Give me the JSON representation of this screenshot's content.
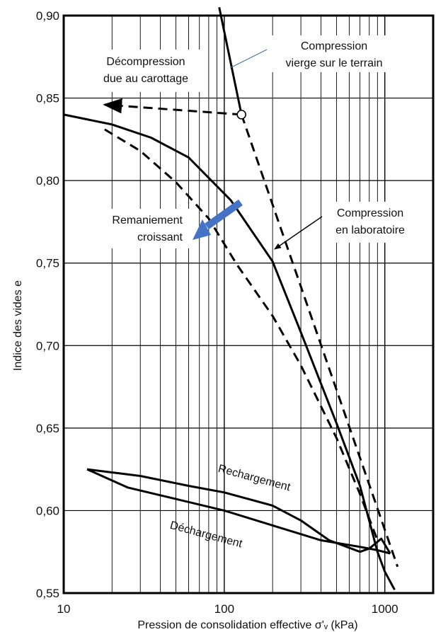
{
  "chart_data": {
    "type": "line",
    "xscale": "log",
    "xlim": [
      10,
      2000
    ],
    "ylim": [
      0.55,
      0.9
    ],
    "grid": true,
    "xlabel": "Pression de consolidation effective σ'ᵥ (kPa)",
    "ylabel": "Indice des vides e",
    "x_ticks": [
      {
        "value": 10,
        "label": "10"
      },
      {
        "value": 100,
        "label": "100"
      },
      {
        "value": 1000,
        "label": "1000"
      }
    ],
    "y_ticks": [
      {
        "value": 0.9,
        "label": "0,90"
      },
      {
        "value": 0.85,
        "label": "0,85"
      },
      {
        "value": 0.8,
        "label": "0,80"
      },
      {
        "value": 0.75,
        "label": "0,75"
      },
      {
        "value": 0.7,
        "label": "0,70"
      },
      {
        "value": 0.65,
        "label": "0,65"
      },
      {
        "value": 0.6,
        "label": "0,60"
      },
      {
        "value": 0.55,
        "label": "0,55"
      }
    ],
    "series": [
      {
        "key": "field_virgin",
        "style": "solid",
        "color": "#000000",
        "points": [
          [
            93,
            0.905
          ],
          [
            128,
            0.84
          ]
        ]
      },
      {
        "key": "field_extension",
        "style": "dashed",
        "color": "#000000",
        "points": [
          [
            128,
            0.84
          ],
          [
            1200,
            0.566
          ]
        ]
      },
      {
        "key": "decompression",
        "style": "dashed",
        "color": "#000000",
        "arrow": "end",
        "points": [
          [
            128,
            0.84
          ],
          [
            18,
            0.846
          ]
        ]
      },
      {
        "key": "lab_compression",
        "style": "solid",
        "color": "#000000",
        "points": [
          [
            10,
            0.84
          ],
          [
            20,
            0.834
          ],
          [
            35,
            0.826
          ],
          [
            60,
            0.814
          ],
          [
            110,
            0.788
          ],
          [
            200,
            0.751
          ],
          [
            300,
            0.708
          ],
          [
            500,
            0.653
          ],
          [
            700,
            0.615
          ],
          [
            900,
            0.575
          ],
          [
            1000,
            0.563
          ],
          [
            1150,
            0.552
          ]
        ]
      },
      {
        "key": "remoulded",
        "style": "dashed",
        "color": "#000000",
        "points": [
          [
            18,
            0.831
          ],
          [
            30,
            0.818
          ],
          [
            50,
            0.799
          ],
          [
            80,
            0.777
          ],
          [
            120,
            0.749
          ],
          [
            200,
            0.718
          ],
          [
            300,
            0.688
          ],
          [
            500,
            0.644
          ],
          [
            700,
            0.61
          ],
          [
            900,
            0.582
          ]
        ]
      },
      {
        "key": "unloading",
        "style": "solid",
        "color": "#000000",
        "points": [
          [
            1080,
            0.574
          ],
          [
            900,
            0.576
          ],
          [
            700,
            0.578
          ],
          [
            400,
            0.582
          ],
          [
            200,
            0.591
          ],
          [
            100,
            0.6
          ],
          [
            50,
            0.607
          ],
          [
            25,
            0.614
          ],
          [
            14,
            0.625
          ]
        ]
      },
      {
        "key": "reloading",
        "style": "solid",
        "color": "#000000",
        "points": [
          [
            14,
            0.625
          ],
          [
            30,
            0.621
          ],
          [
            60,
            0.615
          ],
          [
            100,
            0.611
          ],
          [
            200,
            0.603
          ],
          [
            300,
            0.594
          ],
          [
            450,
            0.582
          ],
          [
            700,
            0.575
          ],
          [
            800,
            0.577
          ],
          [
            950,
            0.583
          ],
          [
            1080,
            0.574
          ]
        ]
      }
    ],
    "field_point": {
      "x": 128,
      "y": 0.84
    },
    "annotations": [
      {
        "key": "decompression",
        "lines": [
          "Décompression",
          "due au carottage"
        ]
      },
      {
        "key": "virgin",
        "lines": [
          "Compression",
          "vierge sur le terrain"
        ]
      },
      {
        "key": "remoulding",
        "lines": [
          "Remaniement",
          "croissant"
        ],
        "arrow_color": "#4472c4"
      },
      {
        "key": "lab",
        "lines": [
          "Compression",
          "en laboratoire"
        ]
      },
      {
        "key": "reloading",
        "lines": [
          "Rechargement"
        ]
      },
      {
        "key": "unloading",
        "lines": [
          "Déchargement"
        ]
      }
    ]
  }
}
